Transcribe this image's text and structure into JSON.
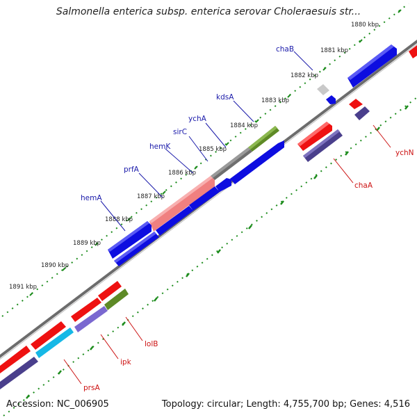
{
  "title": "Salmonella enterica subsp. enterica serovar Choleraesuis str...",
  "accession_text": "Accession: NC_006905",
  "summary_text": "Topology: circular; Length: 4,755,700 bp; Genes: 4,516",
  "kbp_ticks": [
    "1880 kbp",
    "1881 kbp",
    "1882 kbp",
    "1883 kbp",
    "1884 kbp",
    "1885 kbp",
    "1886 kbp",
    "1887 kbp",
    "1888 kbp",
    "1889 kbp",
    "1890 kbp",
    "1891 kbp"
  ],
  "gene_labels": {
    "chaB": "chaB",
    "kdsA": "kdsA",
    "ychA": "ychA",
    "sirC": "sirC",
    "hemK": "hemK",
    "prfA": "prfA",
    "hemA": "hemA",
    "ychN": "ychN",
    "chaA": "chaA",
    "lolB": "lolB",
    "ipk": "ipk",
    "prsA": "prsA"
  },
  "colors": {
    "blue": "#0d0de0",
    "red": "#ee1111",
    "navy": "#4a3f8c",
    "olive": "#5e8a26",
    "gray": "#6e6e6e",
    "pink": "#f08080",
    "cyan": "#16b8e6",
    "lavender": "#7a68d0",
    "lightgray": "#c9c9c9",
    "backbone": "#666666",
    "dots": "#1c8c1c",
    "label_blue": "#1a1aaa",
    "label_red": "#cc1111"
  }
}
